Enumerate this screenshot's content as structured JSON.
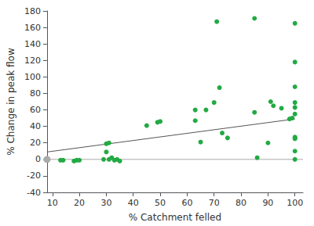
{
  "chart_data": {
    "type": "scatter",
    "xlabel": "% Catchment felled",
    "ylabel": "% Change in peak flow",
    "xlim": [
      8,
      103
    ],
    "ylim": [
      -40,
      180
    ],
    "xticks": [
      10,
      20,
      30,
      40,
      50,
      60,
      70,
      80,
      90,
      100
    ],
    "yticks": [
      -40,
      -20,
      0,
      20,
      40,
      60,
      80,
      100,
      120,
      140,
      160,
      180
    ],
    "grid": false,
    "series": [
      {
        "type": "line",
        "color": "#aaaaaa",
        "x": [
          8,
          103
        ],
        "values": [
          0,
          0
        ]
      },
      {
        "type": "line",
        "color": "#555555",
        "x": [
          8,
          100
        ],
        "values": [
          8.98,
          49.0
        ]
      },
      {
        "type": "scatter",
        "color": "#22aa44",
        "x": [
          13,
          14,
          18,
          19,
          20,
          29,
          30,
          30,
          31,
          31,
          32,
          33,
          34,
          35,
          45,
          49,
          50,
          63,
          63,
          65,
          67,
          70,
          71,
          72,
          73,
          75,
          85,
          85,
          86,
          90,
          91,
          92,
          95,
          98,
          99,
          100,
          100,
          100,
          100,
          100,
          100,
          100,
          100,
          100,
          100,
          100
        ],
        "values": [
          -1,
          -1,
          -2,
          -1,
          -1,
          0,
          9,
          19,
          20,
          0,
          2,
          -1,
          0,
          -2,
          41,
          45,
          46,
          60,
          47,
          21,
          60,
          69,
          167,
          87,
          32,
          26,
          57,
          171,
          2,
          20,
          70,
          65,
          62,
          49,
          50,
          165,
          118,
          88,
          69,
          63,
          55,
          27,
          26,
          25,
          10,
          0
        ]
      },
      {
        "type": "scatter",
        "color": "#aaaaaa",
        "x": [
          8
        ],
        "values": [
          0
        ]
      }
    ]
  }
}
